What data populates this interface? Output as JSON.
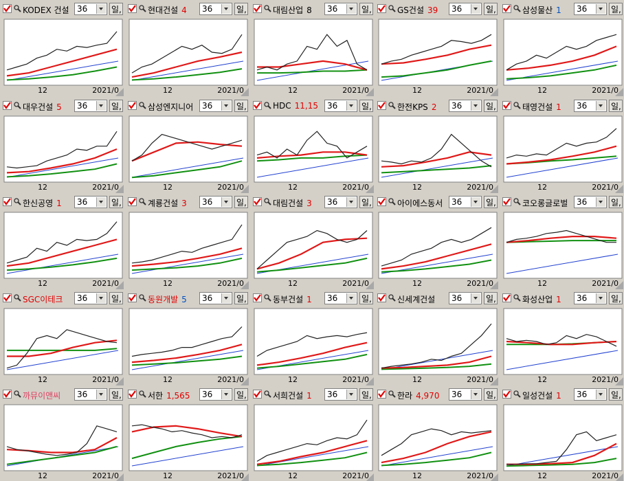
{
  "period": "36",
  "unit": "일,",
  "x_labels": [
    "12",
    "2021/0"
  ],
  "panels": [
    {
      "name": "KODEX 건설",
      "price_series": [
        20,
        25,
        30,
        40,
        45,
        55,
        52,
        60,
        58,
        62,
        65,
        85
      ],
      "ma_red": [
        10,
        15,
        25,
        35,
        45,
        55
      ],
      "ma_green": [
        3,
        5,
        8,
        12,
        18,
        25
      ]
    },
    {
      "name": "현대건설",
      "price": "4",
      "price_color": "#e00000",
      "price_series": [
        15,
        25,
        30,
        40,
        50,
        60,
        55,
        62,
        50,
        48,
        55,
        80
      ],
      "ma_red": [
        8,
        15,
        25,
        35,
        42,
        50
      ],
      "ma_green": [
        3,
        5,
        8,
        12,
        16,
        22
      ]
    },
    {
      "name": "대림산업",
      "price": "8",
      "price_color": "#000000",
      "price_series": [
        20,
        25,
        20,
        30,
        35,
        60,
        55,
        80,
        60,
        70,
        30,
        20
      ],
      "ma_red": [
        25,
        25,
        30,
        35,
        30,
        20
      ],
      "ma_green": [
        15,
        15,
        16,
        18,
        18,
        20
      ]
    },
    {
      "name": "GS건설",
      "price": "39",
      "price_color": "#e00000",
      "price_series": [
        30,
        35,
        38,
        45,
        50,
        55,
        60,
        70,
        68,
        65,
        70,
        80
      ],
      "ma_red": [
        30,
        32,
        38,
        45,
        55,
        62
      ],
      "ma_green": [
        8,
        10,
        15,
        20,
        28,
        35
      ]
    },
    {
      "name": "삼성물산",
      "price": "1",
      "price_color": "#0050c0",
      "price_series": [
        20,
        30,
        35,
        45,
        40,
        50,
        60,
        55,
        60,
        70,
        75,
        80
      ],
      "ma_red": [
        20,
        23,
        28,
        35,
        45,
        60
      ],
      "ma_green": [
        5,
        7,
        10,
        15,
        20,
        28
      ]
    },
    {
      "name": "대우건설",
      "price": "5",
      "price_color": "#e00000",
      "price_series": [
        20,
        18,
        20,
        22,
        30,
        35,
        40,
        50,
        48,
        55,
        55,
        80
      ],
      "ma_red": [
        10,
        12,
        18,
        25,
        35,
        50
      ],
      "ma_green": [
        3,
        5,
        8,
        12,
        16,
        25
      ]
    },
    {
      "name": "삼성엔지니어",
      "price_series": [
        30,
        40,
        60,
        75,
        70,
        65,
        60,
        55,
        50,
        55,
        60,
        65
      ],
      "ma_red": [
        30,
        45,
        60,
        62,
        58,
        55
      ],
      "ma_green": [
        2,
        5,
        10,
        15,
        20,
        30
      ]
    },
    {
      "name": "HDC",
      "price": "11,15",
      "price_color": "#e00000",
      "price_series": [
        40,
        45,
        35,
        50,
        40,
        65,
        80,
        60,
        55,
        35,
        45,
        55
      ],
      "ma_red": [
        35,
        38,
        40,
        45,
        45,
        40
      ],
      "ma_green": [
        30,
        32,
        35,
        35,
        38,
        40
      ]
    },
    {
      "name": "한전KPS",
      "price": "2",
      "price_color": "#e00000",
      "price_series": [
        30,
        28,
        25,
        30,
        28,
        35,
        50,
        75,
        60,
        45,
        30,
        20
      ],
      "ma_red": [
        20,
        22,
        28,
        35,
        45,
        40
      ],
      "ma_green": [
        10,
        12,
        14,
        16,
        18,
        22
      ]
    },
    {
      "name": "태영건설",
      "price": "1",
      "price_color": "#e00000",
      "price_series": [
        35,
        40,
        38,
        42,
        40,
        50,
        60,
        55,
        60,
        62,
        70,
        85
      ],
      "ma_red": [
        25,
        28,
        32,
        38,
        45,
        55
      ],
      "ma_green": [
        25,
        27,
        30,
        32,
        35,
        38
      ]
    },
    {
      "name": "한신공영",
      "price": "1",
      "price_color": "#e00000",
      "price_series": [
        20,
        25,
        30,
        45,
        40,
        55,
        50,
        60,
        58,
        60,
        70,
        90
      ],
      "ma_red": [
        15,
        20,
        30,
        40,
        50,
        60
      ],
      "ma_green": [
        8,
        10,
        13,
        17,
        22,
        28
      ]
    },
    {
      "name": "계룡건설",
      "price": "3",
      "price_color": "#e00000",
      "price_series": [
        20,
        22,
        25,
        30,
        35,
        40,
        38,
        45,
        50,
        55,
        60,
        85
      ],
      "ma_red": [
        15,
        18,
        22,
        28,
        35,
        45
      ],
      "ma_green": [
        8,
        10,
        12,
        15,
        20,
        28
      ]
    },
    {
      "name": "대림건설",
      "price": "3",
      "price_color": "#e00000",
      "price_series": [
        10,
        25,
        40,
        55,
        60,
        65,
        75,
        70,
        60,
        55,
        60,
        75
      ],
      "ma_red": [
        10,
        20,
        35,
        55,
        60,
        62
      ],
      "ma_green": [
        5,
        8,
        12,
        16,
        20,
        28
      ]
    },
    {
      "name": "아이에스동서",
      "price_series": [
        15,
        20,
        25,
        35,
        40,
        45,
        55,
        60,
        55,
        60,
        70,
        80
      ],
      "ma_red": [
        10,
        15,
        22,
        32,
        42,
        52
      ],
      "ma_green": [
        5,
        7,
        10,
        14,
        18,
        25
      ]
    },
    {
      "name": "코오롱글로벌",
      "price_series": [
        55,
        60,
        62,
        65,
        70,
        72,
        75,
        70,
        65,
        60,
        55,
        55
      ],
      "ma_red": [
        55,
        58,
        62,
        65,
        65,
        62
      ],
      "ma_green": [
        55,
        56,
        57,
        58,
        58,
        58
      ]
    },
    {
      "name": "SGC이테크",
      "name_color": "#e00000",
      "price_series": [
        5,
        10,
        30,
        55,
        60,
        55,
        70,
        65,
        60,
        55,
        50,
        48
      ],
      "ma_red": [
        25,
        25,
        30,
        40,
        48,
        52
      ],
      "ma_green": [
        35,
        35,
        35,
        35,
        35,
        38
      ]
    },
    {
      "name": "동원개발",
      "name_color": "#e00000",
      "price": "5",
      "price_color": "#0050c0",
      "price_series": [
        25,
        28,
        30,
        32,
        35,
        40,
        40,
        45,
        50,
        55,
        58,
        75
      ],
      "ma_red": [
        15,
        18,
        22,
        28,
        35,
        45
      ],
      "ma_green": [
        10,
        12,
        14,
        17,
        20,
        25
      ]
    },
    {
      "name": "동부건설",
      "price": "1",
      "price_color": "#e00000",
      "price_series": [
        25,
        35,
        40,
        45,
        50,
        60,
        55,
        58,
        60,
        58,
        62,
        65
      ],
      "ma_red": [
        10,
        15,
        22,
        30,
        40,
        48
      ],
      "ma_green": [
        5,
        8,
        12,
        16,
        20,
        28
      ]
    },
    {
      "name": "신세계건설",
      "price_series": [
        5,
        8,
        10,
        12,
        15,
        20,
        18,
        25,
        30,
        45,
        60,
        80
      ],
      "ma_red": [
        5,
        6,
        8,
        10,
        15,
        25
      ],
      "ma_green": [
        3,
        4,
        5,
        6,
        8,
        12
      ]
    },
    {
      "name": "화성산업",
      "price": "1",
      "price_color": "#e00000",
      "price_series": [
        55,
        50,
        52,
        50,
        45,
        48,
        60,
        55,
        62,
        58,
        50,
        42
      ],
      "ma_red": [
        50,
        48,
        45,
        45,
        48,
        50
      ],
      "ma_green": [
        45,
        45,
        45,
        46,
        48,
        50
      ]
    },
    {
      "name": "까뮤이앤씨",
      "name_color": "#e04060",
      "price_series": [
        35,
        30,
        28,
        25,
        22,
        20,
        22,
        25,
        40,
        70,
        65,
        60
      ],
      "ma_red": [
        30,
        28,
        25,
        25,
        30,
        50
      ],
      "ma_green": [
        5,
        10,
        15,
        20,
        25,
        35
      ]
    },
    {
      "name": "서한",
      "price": "1,565",
      "price_color": "#e00000",
      "price_series": [
        70,
        72,
        68,
        65,
        60,
        62,
        58,
        55,
        50,
        52,
        50,
        55
      ],
      "ma_red": [
        60,
        68,
        70,
        65,
        58,
        52
      ],
      "ma_green": [
        15,
        25,
        35,
        42,
        48,
        52
      ]
    },
    {
      "name": "서희건설",
      "price": "1",
      "price_color": "#e00000",
      "price_series": [
        10,
        20,
        25,
        30,
        35,
        40,
        38,
        45,
        50,
        48,
        55,
        80
      ],
      "ma_red": [
        5,
        10,
        18,
        25,
        35,
        45
      ],
      "ma_green": [
        3,
        5,
        8,
        12,
        16,
        25
      ]
    },
    {
      "name": "한라",
      "price": "4,970",
      "price_color": "#e00000",
      "price_series": [
        20,
        30,
        40,
        55,
        60,
        65,
        62,
        55,
        60,
        58,
        60,
        62
      ],
      "ma_red": [
        8,
        15,
        25,
        40,
        52,
        60
      ],
      "ma_green": [
        3,
        5,
        8,
        12,
        16,
        25
      ]
    },
    {
      "name": "일성건설",
      "price": "1",
      "price_color": "#e00000",
      "price_series": [
        5,
        5,
        6,
        6,
        8,
        10,
        30,
        55,
        60,
        45,
        50,
        55
      ],
      "ma_red": [
        5,
        5,
        6,
        8,
        20,
        40
      ],
      "ma_green": [
        2,
        3,
        4,
        5,
        8,
        15
      ]
    }
  ]
}
